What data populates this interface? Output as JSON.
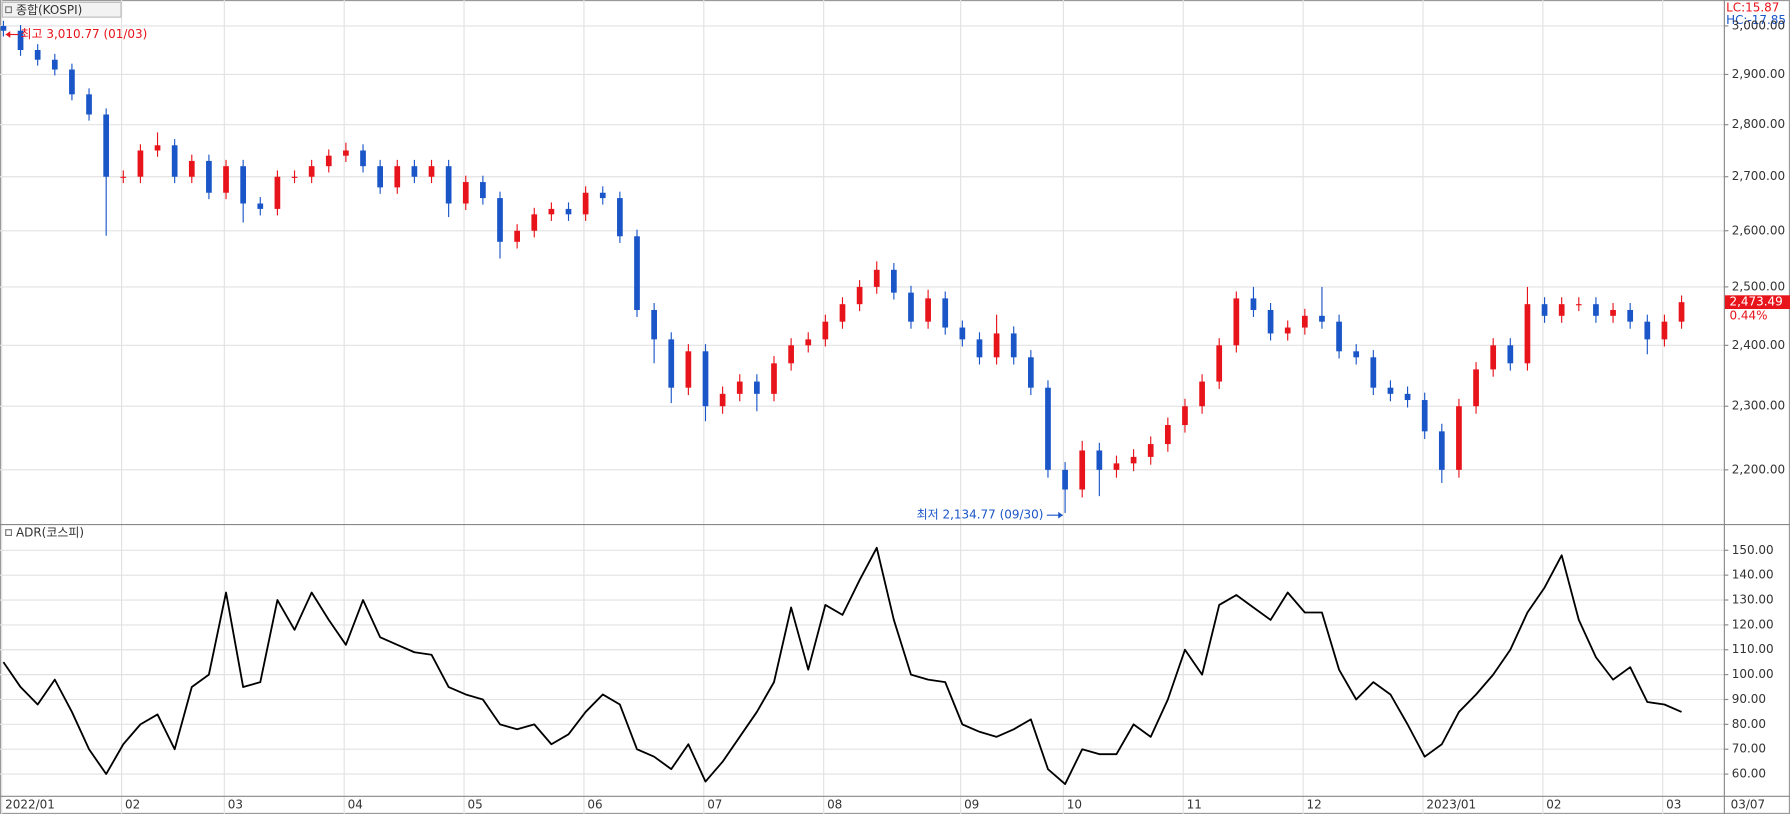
{
  "chart_data": [
    {
      "type": "candlestick",
      "title": "종합(KOSPI)",
      "categories": [
        "2022/01",
        null,
        null,
        null,
        null,
        null,
        null,
        "02",
        null,
        null,
        null,
        null,
        null,
        "03",
        null,
        null,
        null,
        null,
        null,
        null,
        "04",
        null,
        null,
        null,
        null,
        null,
        null,
        "05",
        null,
        null,
        null,
        null,
        null,
        null,
        "06",
        null,
        null,
        null,
        null,
        null,
        null,
        "07",
        null,
        null,
        null,
        null,
        null,
        null,
        "08",
        null,
        null,
        null,
        null,
        null,
        null,
        null,
        "09",
        null,
        null,
        null,
        null,
        null,
        "10",
        null,
        null,
        null,
        null,
        null,
        null,
        "11",
        null,
        null,
        null,
        null,
        null,
        null,
        "12",
        null,
        null,
        null,
        null,
        null,
        null,
        "2023/01",
        null,
        null,
        null,
        null,
        null,
        null,
        "02",
        null,
        null,
        null,
        null,
        null,
        null,
        "03",
        null
      ],
      "open": [
        3000,
        2990,
        2950,
        2930,
        2910,
        2860,
        2820,
        2700,
        2700,
        2750,
        2760,
        2700,
        2730,
        2670,
        2720,
        2650,
        2640,
        2700,
        2700,
        2720,
        2740,
        2750,
        2720,
        2680,
        2720,
        2700,
        2720,
        2650,
        2690,
        2660,
        2580,
        2600,
        2630,
        2640,
        2630,
        2670,
        2660,
        2590,
        2460,
        2410,
        2330,
        2390,
        2300,
        2320,
        2340,
        2320,
        2370,
        2400,
        2410,
        2440,
        2470,
        2500,
        2530,
        2490,
        2440,
        2480,
        2430,
        2410,
        2380,
        2420,
        2380,
        2330,
        2200,
        2170,
        2230,
        2200,
        2210,
        2220,
        2240,
        2270,
        2300,
        2340,
        2400,
        2480,
        2460,
        2420,
        2430,
        2450,
        2440,
        2390,
        2380,
        2330,
        2320,
        2310,
        2260,
        2200,
        2300,
        2360,
        2400,
        2370,
        2470,
        2450,
        2470,
        2470,
        2450,
        2460,
        2440,
        2410,
        2440
      ],
      "high": [
        3010.77,
        3002,
        2962,
        2942,
        2922,
        2872,
        2832,
        2712,
        2762,
        2785,
        2772,
        2742,
        2742,
        2732,
        2732,
        2662,
        2712,
        2712,
        2732,
        2752,
        2765,
        2762,
        2732,
        2732,
        2732,
        2732,
        2732,
        2702,
        2702,
        2672,
        2612,
        2642,
        2652,
        2652,
        2682,
        2682,
        2672,
        2602,
        2472,
        2422,
        2402,
        2402,
        2332,
        2352,
        2352,
        2382,
        2412,
        2422,
        2452,
        2482,
        2512,
        2545,
        2542,
        2502,
        2495,
        2492,
        2442,
        2422,
        2452,
        2432,
        2392,
        2342,
        2212,
        2245,
        2242,
        2222,
        2232,
        2252,
        2282,
        2312,
        2352,
        2412,
        2492,
        2500,
        2472,
        2442,
        2462,
        2500,
        2452,
        2402,
        2392,
        2342,
        2332,
        2322,
        2272,
        2312,
        2372,
        2412,
        2412,
        2500,
        2482,
        2482,
        2482,
        2482,
        2472,
        2472,
        2452,
        2452,
        2485
      ],
      "low": [
        2978,
        2938,
        2918,
        2898,
        2848,
        2808,
        2591,
        2688,
        2688,
        2738,
        2688,
        2688,
        2658,
        2658,
        2615,
        2628,
        2628,
        2688,
        2688,
        2708,
        2728,
        2708,
        2668,
        2668,
        2688,
        2688,
        2625,
        2638,
        2648,
        2550,
        2568,
        2588,
        2618,
        2618,
        2618,
        2648,
        2578,
        2448,
        2370,
        2305,
        2318,
        2276,
        2288,
        2308,
        2292,
        2308,
        2358,
        2388,
        2398,
        2428,
        2458,
        2488,
        2478,
        2428,
        2428,
        2418,
        2398,
        2368,
        2368,
        2368,
        2318,
        2188,
        2134.77,
        2158,
        2160,
        2188,
        2198,
        2208,
        2228,
        2258,
        2288,
        2328,
        2388,
        2448,
        2408,
        2408,
        2418,
        2428,
        2378,
        2368,
        2318,
        2308,
        2298,
        2248,
        2180,
        2188,
        2288,
        2348,
        2358,
        2358,
        2438,
        2438,
        2458,
        2438,
        2438,
        2428,
        2385,
        2398,
        2428
      ],
      "close": [
        2990,
        2950,
        2930,
        2910,
        2860,
        2820,
        2700,
        2700,
        2750,
        2760,
        2700,
        2730,
        2670,
        2720,
        2650,
        2640,
        2700,
        2700,
        2720,
        2740,
        2750,
        2720,
        2680,
        2720,
        2700,
        2720,
        2650,
        2690,
        2660,
        2580,
        2600,
        2630,
        2640,
        2630,
        2670,
        2660,
        2590,
        2460,
        2410,
        2330,
        2390,
        2300,
        2320,
        2340,
        2320,
        2370,
        2400,
        2410,
        2440,
        2470,
        2500,
        2530,
        2490,
        2440,
        2480,
        2430,
        2410,
        2380,
        2420,
        2380,
        2330,
        2200,
        2170,
        2230,
        2200,
        2210,
        2220,
        2240,
        2270,
        2300,
        2340,
        2400,
        2480,
        2460,
        2420,
        2430,
        2450,
        2440,
        2390,
        2380,
        2330,
        2320,
        2310,
        2260,
        2200,
        2300,
        2360,
        2400,
        2370,
        2470,
        2450,
        2470,
        2470,
        2450,
        2460,
        2440,
        2410,
        2440,
        2473.49
      ],
      "up_color": "#e8141b",
      "down_color": "#1a56c8",
      "ylim": [
        2120,
        3050
      ],
      "log": true,
      "grid": true,
      "yticks": [
        {
          "value": 2200,
          "label": "2,200.00"
        },
        {
          "value": 2300,
          "label": "2,300.00"
        },
        {
          "value": 2400,
          "label": "2,400.00"
        },
        {
          "value": 2500,
          "label": "2,500.00"
        },
        {
          "value": 2600,
          "label": "2,600.00"
        },
        {
          "value": 2700,
          "label": "2,700.00"
        },
        {
          "value": 2800,
          "label": "2,800.00"
        },
        {
          "value": 2900,
          "label": "2,900.00"
        },
        {
          "value": 3000,
          "label": "3,000.00"
        }
      ],
      "high_annotation": "최고 3,010.77 (01/03)",
      "low_annotation": "최저 2,134.77 (09/30)",
      "last_price_label": "2,473.49",
      "change": "0.44%",
      "lc": "LC:15.87",
      "hc": "HC:-17.85",
      "last_date": "03/07"
    },
    {
      "type": "line",
      "title": "ADR(코스피)",
      "color": "#000000",
      "values": [
        105,
        95,
        88,
        98,
        85,
        70,
        60,
        72,
        80,
        84,
        70,
        95,
        100,
        133,
        95,
        97,
        130,
        118,
        133,
        122,
        112,
        130,
        115,
        112,
        109,
        108,
        95,
        92,
        90,
        80,
        78,
        80,
        72,
        76,
        85,
        92,
        88,
        70,
        67,
        62,
        72,
        57,
        65,
        75,
        85,
        97,
        127,
        102,
        128,
        124,
        138,
        151,
        122,
        100,
        98,
        97,
        80,
        77,
        75,
        78,
        82,
        62,
        56,
        70,
        68,
        68,
        80,
        75,
        90,
        110,
        100,
        128,
        132,
        127,
        122,
        133,
        125,
        125,
        102,
        90,
        97,
        92,
        80,
        67,
        72,
        85,
        92,
        100,
        110,
        125,
        135,
        148,
        122,
        107,
        98,
        103,
        89,
        88,
        85
      ],
      "ylim": [
        51.3,
        160.1
      ],
      "grid": true,
      "yticks": [
        {
          "value": 60,
          "label": "60.00"
        },
        {
          "value": 70,
          "label": "70.00"
        },
        {
          "value": 80,
          "label": "80.00"
        },
        {
          "value": 90,
          "label": "90.00"
        },
        {
          "value": 100,
          "label": "100.00"
        },
        {
          "value": 110,
          "label": "110.00"
        },
        {
          "value": 120,
          "label": "120.00"
        },
        {
          "value": 130,
          "label": "130.00"
        },
        {
          "value": 140,
          "label": "140.00"
        },
        {
          "value": 150,
          "label": "150.00"
        }
      ]
    }
  ]
}
